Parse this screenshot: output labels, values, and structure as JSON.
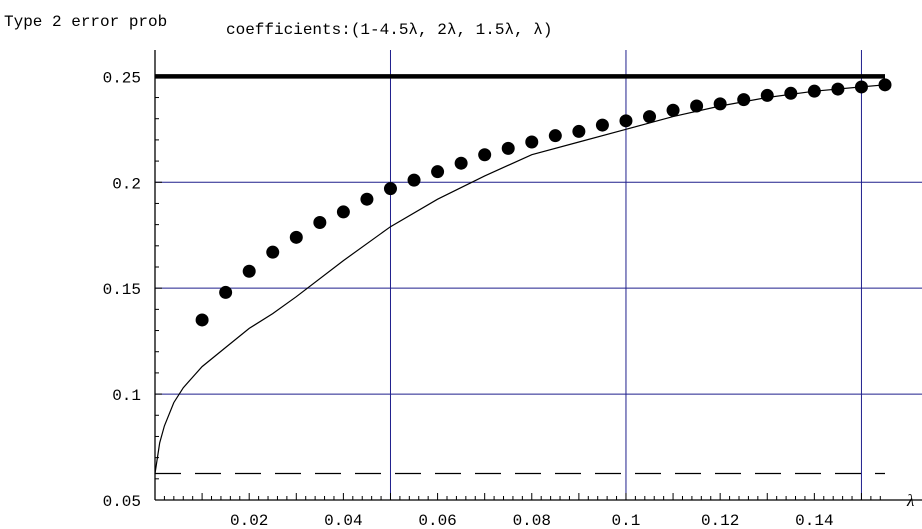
{
  "chart_data": {
    "type": "scatter",
    "ylabel": "Type 2 error prob",
    "title": "coefficients:(1-4.5λ, 2λ, 1.5λ, λ)",
    "xlabel": "λ",
    "xlim": [
      0,
      0.155
    ],
    "ylim": [
      0.05,
      0.253
    ],
    "x_ticks": [
      0.02,
      0.04,
      0.06,
      0.08,
      0.1,
      0.12,
      0.14
    ],
    "x_tick_labels": [
      "0.02",
      "0.04",
      "0.06",
      "0.08",
      "0.1",
      "0.12",
      "0.14"
    ],
    "y_ticks": [
      0.05,
      0.1,
      0.15,
      0.2,
      0.25
    ],
    "y_tick_labels": [
      "0.05",
      "0.1",
      "0.15",
      "0.2",
      "0.25"
    ],
    "gridlines_x": [
      0.05,
      0.1,
      0.15
    ],
    "gridlines_y": [
      0.1,
      0.15,
      0.2
    ],
    "grid_color": "#1f1f8c",
    "series": [
      {
        "style": "points",
        "x": [
          0.01,
          0.015,
          0.02,
          0.025,
          0.03,
          0.035,
          0.04,
          0.045,
          0.05,
          0.055,
          0.06,
          0.065,
          0.07,
          0.075,
          0.08,
          0.085,
          0.09,
          0.095,
          0.1,
          0.105,
          0.11,
          0.115,
          0.12,
          0.125,
          0.13,
          0.135,
          0.14,
          0.145,
          0.15,
          0.155
        ],
        "y": [
          0.135,
          0.148,
          0.158,
          0.167,
          0.174,
          0.181,
          0.186,
          0.192,
          0.197,
          0.201,
          0.205,
          0.209,
          0.213,
          0.216,
          0.219,
          0.222,
          0.224,
          0.227,
          0.229,
          0.231,
          0.234,
          0.236,
          0.237,
          0.239,
          0.241,
          0.242,
          0.243,
          0.244,
          0.245,
          0.246
        ]
      },
      {
        "style": "thin-line",
        "x": [
          0,
          0.001,
          0.002,
          0.004,
          0.006,
          0.008,
          0.01,
          0.015,
          0.02,
          0.025,
          0.03,
          0.04,
          0.05,
          0.06,
          0.07,
          0.08,
          0.09,
          0.1,
          0.11,
          0.12,
          0.13,
          0.14,
          0.15,
          0.155
        ],
        "y": [
          0.0625,
          0.077,
          0.085,
          0.096,
          0.103,
          0.108,
          0.113,
          0.122,
          0.131,
          0.138,
          0.146,
          0.163,
          0.179,
          0.192,
          0.203,
          0.213,
          0.219,
          0.225,
          0.231,
          0.236,
          0.24,
          0.243,
          0.245,
          0.246
        ]
      },
      {
        "style": "thick-line",
        "x": [
          0,
          0.155
        ],
        "y": [
          0.25,
          0.25
        ]
      },
      {
        "style": "dashed-line",
        "x": [
          0,
          0.155
        ],
        "y": [
          0.0625,
          0.0625
        ]
      }
    ]
  }
}
